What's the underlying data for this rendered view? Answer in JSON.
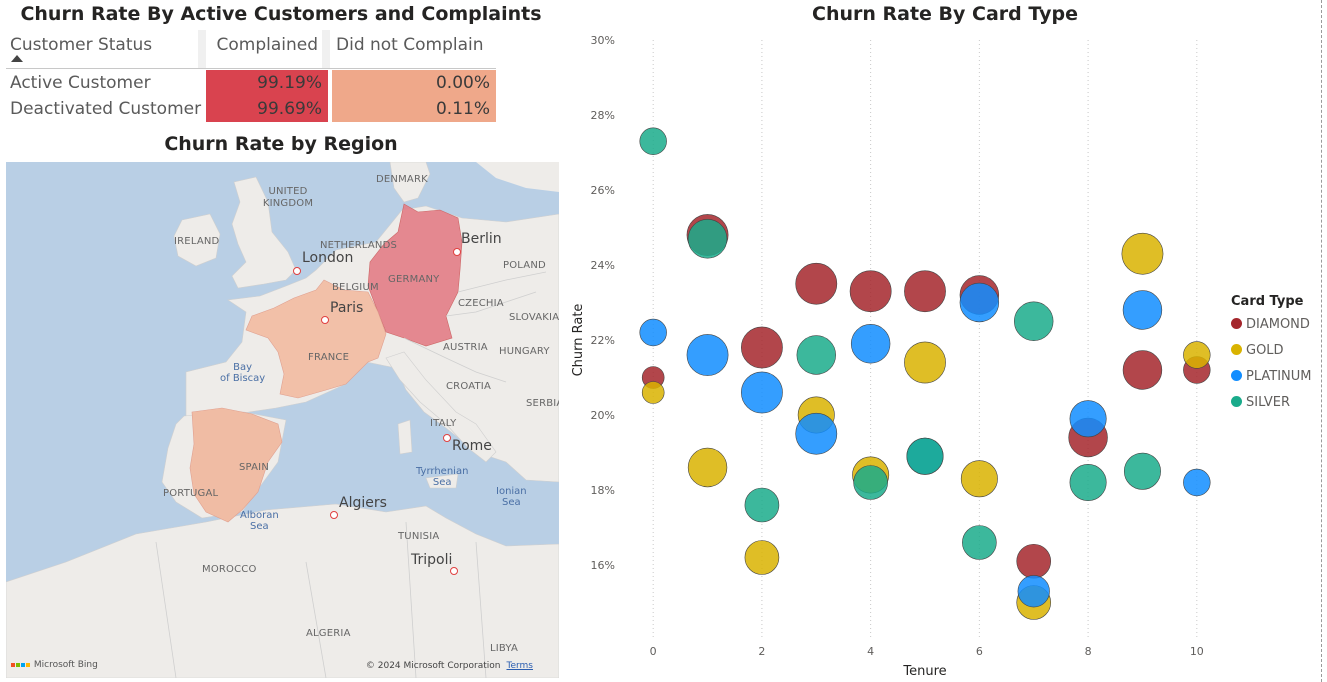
{
  "titles": {
    "table": "Churn Rate By Active Customers and Complaints",
    "region": "Churn Rate by Region",
    "bubble": "Churn Rate By Card Type"
  },
  "matrix": {
    "header_status": "Customer Status",
    "columns": [
      "Complained",
      "Did not Complain"
    ],
    "rows": [
      {
        "label": "Active Customer",
        "values": [
          "99.19%",
          "0.00%"
        ]
      },
      {
        "label": "Deactivated Customer",
        "values": [
          "99.69%",
          "0.11%"
        ]
      }
    ],
    "colors": {
      "complained": "#d9434f",
      "did_not": "#efa88a"
    }
  },
  "map": {
    "countries": {
      "uk": "UNITED KINGDOM",
      "ireland": "IRELAND",
      "denmark": "DENMARK",
      "netherlands": "NETHERLANDS",
      "belgium": "BELGIUM",
      "germany": "GERMANY",
      "poland": "POLAND",
      "czechia": "CZECHIA",
      "slovakia": "SLOVAKIA",
      "austria": "AUSTRIA",
      "hungary": "HUNGARY",
      "france": "FRANCE",
      "croatia": "CROATIA",
      "serbia": "SERBIA",
      "italy": "ITALY",
      "spain": "SPAIN",
      "portugal": "PORTUGAL",
      "tunisia": "TUNISIA",
      "morocco": "MOROCCO",
      "algeria": "ALGERIA",
      "libya": "LIBYA"
    },
    "cities": {
      "london": "London",
      "paris": "Paris",
      "berlin": "Berlin",
      "rome": "Rome",
      "algiers": "Algiers",
      "tripoli": "Tripoli"
    },
    "seas": {
      "biscay_1": "Bay",
      "biscay_2": "of Biscay",
      "tyrrhenian_1": "Tyrrhenian",
      "tyrrhenian_2": "Sea",
      "ionian_1": "Ionian",
      "ionian_2": "Sea",
      "alboran_1": "Alboran",
      "alboran_2": "Sea"
    },
    "attribution": "Microsoft Bing",
    "copyright": "© 2024 Microsoft Corporation",
    "terms": "Terms",
    "region_colors": {
      "germany": "#e27d86",
      "france": "#f2c0a8",
      "spain": "#f0bca4"
    }
  },
  "legend": {
    "title": "Card Type",
    "items": [
      "DIAMOND",
      "GOLD",
      "PLATINUM",
      "SILVER"
    ]
  },
  "colors": {
    "DIAMOND": "#a4262c",
    "GOLD": "#d9b300",
    "PLATINUM": "#118dff",
    "SILVER": "#1aab8b"
  },
  "chart_data": {
    "type": "scatter",
    "title": "Churn Rate By Card Type",
    "xlabel": "Tenure",
    "ylabel": "Churn Rate",
    "xlim": [
      -0.5,
      10.5
    ],
    "ylim": [
      14,
      30
    ],
    "xticks": [
      0,
      2,
      4,
      6,
      8,
      10
    ],
    "yticks": [
      16,
      18,
      20,
      22,
      24,
      26,
      28,
      30
    ],
    "ytick_format": "%",
    "bubble": true,
    "legend_position": "right",
    "series": [
      {
        "name": "DIAMOND",
        "points": [
          {
            "x": 0,
            "y": 21.0,
            "s": 0.5
          },
          {
            "x": 1,
            "y": 24.8,
            "s": 0.9
          },
          {
            "x": 2,
            "y": 21.8,
            "s": 0.9
          },
          {
            "x": 3,
            "y": 23.5,
            "s": 0.9
          },
          {
            "x": 4,
            "y": 23.3,
            "s": 0.9
          },
          {
            "x": 5,
            "y": 23.3,
            "s": 0.9
          },
          {
            "x": 6,
            "y": 23.2,
            "s": 0.85
          },
          {
            "x": 7,
            "y": 16.1,
            "s": 0.75
          },
          {
            "x": 8,
            "y": 19.4,
            "s": 0.85
          },
          {
            "x": 9,
            "y": 21.2,
            "s": 0.85
          },
          {
            "x": 10,
            "y": 21.2,
            "s": 0.6
          }
        ]
      },
      {
        "name": "GOLD",
        "points": [
          {
            "x": 0,
            "y": 20.6,
            "s": 0.5
          },
          {
            "x": 1,
            "y": 18.6,
            "s": 0.85
          },
          {
            "x": 2,
            "y": 16.2,
            "s": 0.75
          },
          {
            "x": 3,
            "y": 20.0,
            "s": 0.8
          },
          {
            "x": 4,
            "y": 18.4,
            "s": 0.8
          },
          {
            "x": 5,
            "y": 21.4,
            "s": 0.9
          },
          {
            "x": 6,
            "y": 18.3,
            "s": 0.8
          },
          {
            "x": 7,
            "y": 15.0,
            "s": 0.75
          },
          {
            "x": 9,
            "y": 24.3,
            "s": 0.9
          },
          {
            "x": 10,
            "y": 21.6,
            "s": 0.6
          }
        ]
      },
      {
        "name": "PLATINUM",
        "points": [
          {
            "x": 0,
            "y": 22.2,
            "s": 0.6
          },
          {
            "x": 1,
            "y": 21.6,
            "s": 0.9
          },
          {
            "x": 2,
            "y": 20.6,
            "s": 0.9
          },
          {
            "x": 3,
            "y": 19.5,
            "s": 0.9
          },
          {
            "x": 4,
            "y": 21.9,
            "s": 0.85
          },
          {
            "x": 5,
            "y": 18.9,
            "s": 0.8
          },
          {
            "x": 6,
            "y": 23.0,
            "s": 0.85
          },
          {
            "x": 7,
            "y": 15.3,
            "s": 0.7
          },
          {
            "x": 8,
            "y": 19.9,
            "s": 0.8
          },
          {
            "x": 9,
            "y": 22.8,
            "s": 0.85
          },
          {
            "x": 10,
            "y": 18.2,
            "s": 0.6
          }
        ]
      },
      {
        "name": "SILVER",
        "points": [
          {
            "x": 0,
            "y": 27.3,
            "s": 0.6
          },
          {
            "x": 1,
            "y": 24.7,
            "s": 0.85
          },
          {
            "x": 2,
            "y": 17.6,
            "s": 0.75
          },
          {
            "x": 3,
            "y": 21.6,
            "s": 0.85
          },
          {
            "x": 4,
            "y": 18.2,
            "s": 0.75
          },
          {
            "x": 5,
            "y": 18.9,
            "s": 0.8
          },
          {
            "x": 6,
            "y": 16.6,
            "s": 0.75
          },
          {
            "x": 7,
            "y": 22.5,
            "s": 0.85
          },
          {
            "x": 8,
            "y": 18.2,
            "s": 0.8
          },
          {
            "x": 9,
            "y": 18.5,
            "s": 0.8
          }
        ]
      }
    ]
  }
}
